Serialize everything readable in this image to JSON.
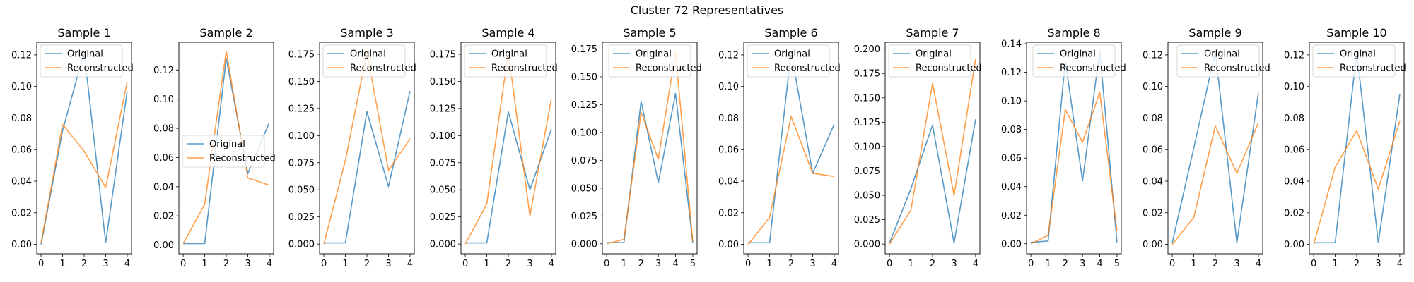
{
  "figure": {
    "title": "Cluster 72 Representatives"
  },
  "chart_data": [
    {
      "type": "line",
      "title": "Sample 1",
      "x": [
        0,
        1,
        2,
        3,
        4
      ],
      "xticks": [
        0,
        1,
        2,
        3,
        4
      ],
      "xlim": [
        -0.2,
        4.2
      ],
      "ylim": [
        -0.006,
        0.128
      ],
      "yticks": [
        0.0,
        0.02,
        0.04,
        0.06,
        0.08,
        0.1,
        0.12
      ],
      "ytick_labels": [
        "0.00",
        "0.02",
        "0.04",
        "0.06",
        "0.08",
        "0.10",
        "0.12"
      ],
      "legend": "upper-left",
      "series": [
        {
          "name": "Original",
          "color": "#1f77b4",
          "values": [
            0.0,
            0.072,
            0.122,
            0.001,
            0.097
          ]
        },
        {
          "name": "Reconstructed",
          "color": "#ff7f0e",
          "values": [
            0.001,
            0.076,
            0.059,
            0.036,
            0.103
          ]
        }
      ]
    },
    {
      "type": "line",
      "title": "Sample 2",
      "x": [
        0,
        1,
        2,
        3,
        4
      ],
      "xticks": [
        0,
        1,
        2,
        3,
        4
      ],
      "xlim": [
        -0.2,
        4.2
      ],
      "ylim": [
        -0.006,
        0.139
      ],
      "yticks": [
        0.0,
        0.02,
        0.04,
        0.06,
        0.08,
        0.1,
        0.12
      ],
      "ytick_labels": [
        "0.00",
        "0.02",
        "0.04",
        "0.06",
        "0.08",
        "0.10",
        "0.12"
      ],
      "legend": "center-left",
      "series": [
        {
          "name": "Original",
          "color": "#1f77b4",
          "values": [
            0.001,
            0.001,
            0.128,
            0.049,
            0.084
          ]
        },
        {
          "name": "Reconstructed",
          "color": "#ff7f0e",
          "values": [
            0.001,
            0.028,
            0.133,
            0.046,
            0.041
          ]
        }
      ]
    },
    {
      "type": "line",
      "title": "Sample 3",
      "x": [
        0,
        1,
        2,
        3,
        4
      ],
      "xticks": [
        0,
        1,
        2,
        3,
        4
      ],
      "xlim": [
        -0.2,
        4.2
      ],
      "ylim": [
        -0.009,
        0.186
      ],
      "yticks": [
        0.0,
        0.025,
        0.05,
        0.075,
        0.1,
        0.125,
        0.15,
        0.175
      ],
      "ytick_labels": [
        "0.000",
        "0.025",
        "0.050",
        "0.075",
        "0.100",
        "0.125",
        "0.150",
        "0.175"
      ],
      "legend": "upper-left",
      "series": [
        {
          "name": "Original",
          "color": "#1f77b4",
          "values": [
            0.001,
            0.001,
            0.122,
            0.053,
            0.141
          ]
        },
        {
          "name": "Reconstructed",
          "color": "#ff7f0e",
          "values": [
            0.0,
            0.077,
            0.177,
            0.068,
            0.097
          ]
        }
      ]
    },
    {
      "type": "line",
      "title": "Sample 4",
      "x": [
        0,
        1,
        2,
        3,
        4
      ],
      "xticks": [
        0,
        1,
        2,
        3,
        4
      ],
      "xlim": [
        -0.2,
        4.2
      ],
      "ylim": [
        -0.009,
        0.186
      ],
      "yticks": [
        0.0,
        0.025,
        0.05,
        0.075,
        0.1,
        0.125,
        0.15,
        0.175
      ],
      "ytick_labels": [
        "0.000",
        "0.025",
        "0.050",
        "0.075",
        "0.100",
        "0.125",
        "0.150",
        "0.175"
      ],
      "legend": "upper-left",
      "series": [
        {
          "name": "Original",
          "color": "#1f77b4",
          "values": [
            0.001,
            0.001,
            0.122,
            0.05,
            0.106
          ]
        },
        {
          "name": "Reconstructed",
          "color": "#ff7f0e",
          "values": [
            0.0,
            0.037,
            0.177,
            0.026,
            0.134
          ]
        }
      ]
    },
    {
      "type": "line",
      "title": "Sample 5",
      "x": [
        0,
        1,
        2,
        3,
        4,
        5
      ],
      "xticks": [
        0,
        1,
        2,
        3,
        4,
        5
      ],
      "xlim": [
        -0.25,
        5.25
      ],
      "ylim": [
        -0.009,
        0.181
      ],
      "yticks": [
        0.0,
        0.025,
        0.05,
        0.075,
        0.1,
        0.125,
        0.15,
        0.175
      ],
      "ytick_labels": [
        "0.000",
        "0.025",
        "0.050",
        "0.075",
        "0.100",
        "0.125",
        "0.150",
        "0.175"
      ],
      "legend": "upper-center",
      "series": [
        {
          "name": "Original",
          "color": "#1f77b4",
          "values": [
            0.001,
            0.001,
            0.128,
            0.055,
            0.135,
            0.001
          ]
        },
        {
          "name": "Reconstructed",
          "color": "#ff7f0e",
          "values": [
            0.0,
            0.004,
            0.118,
            0.076,
            0.172,
            0.002
          ]
        }
      ]
    },
    {
      "type": "line",
      "title": "Sample 6",
      "x": [
        0,
        1,
        2,
        3,
        4
      ],
      "xticks": [
        0,
        1,
        2,
        3,
        4
      ],
      "xlim": [
        -0.2,
        4.2
      ],
      "ylim": [
        -0.006,
        0.128
      ],
      "yticks": [
        0.0,
        0.02,
        0.04,
        0.06,
        0.08,
        0.1,
        0.12
      ],
      "ytick_labels": [
        "0.00",
        "0.02",
        "0.04",
        "0.06",
        "0.08",
        "0.10",
        "0.12"
      ],
      "legend": "upper-left",
      "series": [
        {
          "name": "Original",
          "color": "#1f77b4",
          "values": [
            0.001,
            0.001,
            0.122,
            0.045,
            0.076
          ]
        },
        {
          "name": "Reconstructed",
          "color": "#ff7f0e",
          "values": [
            0.0,
            0.017,
            0.081,
            0.045,
            0.043
          ]
        }
      ]
    },
    {
      "type": "line",
      "title": "Sample 7",
      "x": [
        0,
        1,
        2,
        3,
        4
      ],
      "xticks": [
        0,
        1,
        2,
        3,
        4
      ],
      "xlim": [
        -0.2,
        4.2
      ],
      "ylim": [
        -0.01,
        0.207
      ],
      "yticks": [
        0.0,
        0.025,
        0.05,
        0.075,
        0.1,
        0.125,
        0.15,
        0.175,
        0.2
      ],
      "ytick_labels": [
        "0.000",
        "0.025",
        "0.050",
        "0.075",
        "0.100",
        "0.125",
        "0.150",
        "0.175",
        "0.200"
      ],
      "legend": "upper-left",
      "series": [
        {
          "name": "Original",
          "color": "#1f77b4",
          "values": [
            0.001,
            0.057,
            0.122,
            0.001,
            0.128
          ]
        },
        {
          "name": "Reconstructed",
          "color": "#ff7f0e",
          "values": [
            0.0,
            0.035,
            0.165,
            0.05,
            0.19
          ]
        }
      ]
    },
    {
      "type": "line",
      "title": "Sample 8",
      "x": [
        0,
        1,
        2,
        3,
        4,
        5
      ],
      "xticks": [
        0,
        1,
        2,
        3,
        4,
        5
      ],
      "xlim": [
        -0.25,
        5.25
      ],
      "ylim": [
        -0.007,
        0.141
      ],
      "yticks": [
        0.0,
        0.02,
        0.04,
        0.06,
        0.08,
        0.1,
        0.12,
        0.14
      ],
      "ytick_labels": [
        "0.00",
        "0.02",
        "0.04",
        "0.06",
        "0.08",
        "0.10",
        "0.12",
        "0.14"
      ],
      "legend": "upper-center",
      "series": [
        {
          "name": "Original",
          "color": "#1f77b4",
          "values": [
            0.001,
            0.002,
            0.128,
            0.044,
            0.135,
            0.001
          ]
        },
        {
          "name": "Reconstructed",
          "color": "#ff7f0e",
          "values": [
            0.0,
            0.006,
            0.094,
            0.071,
            0.106,
            0.009
          ]
        }
      ]
    },
    {
      "type": "line",
      "title": "Sample 9",
      "x": [
        0,
        1,
        2,
        3,
        4
      ],
      "xticks": [
        0,
        1,
        2,
        3,
        4
      ],
      "xlim": [
        -0.2,
        4.2
      ],
      "ylim": [
        -0.006,
        0.128
      ],
      "yticks": [
        0.0,
        0.02,
        0.04,
        0.06,
        0.08,
        0.1,
        0.12
      ],
      "ytick_labels": [
        "0.00",
        "0.02",
        "0.04",
        "0.06",
        "0.08",
        "0.10",
        "0.12"
      ],
      "legend": "upper-right",
      "series": [
        {
          "name": "Original",
          "color": "#1f77b4",
          "values": [
            0.001,
            0.061,
            0.122,
            0.001,
            0.096
          ]
        },
        {
          "name": "Reconstructed",
          "color": "#ff7f0e",
          "values": [
            0.0,
            0.017,
            0.075,
            0.045,
            0.077
          ]
        }
      ]
    },
    {
      "type": "line",
      "title": "Sample 10",
      "x": [
        0,
        1,
        2,
        3,
        4
      ],
      "xticks": [
        0,
        1,
        2,
        3,
        4
      ],
      "xlim": [
        -0.2,
        4.2
      ],
      "ylim": [
        -0.006,
        0.128
      ],
      "yticks": [
        0.0,
        0.02,
        0.04,
        0.06,
        0.08,
        0.1,
        0.12
      ],
      "ytick_labels": [
        "0.00",
        "0.02",
        "0.04",
        "0.06",
        "0.08",
        "0.10",
        "0.12"
      ],
      "legend": "upper-left",
      "series": [
        {
          "name": "Original",
          "color": "#1f77b4",
          "values": [
            0.001,
            0.001,
            0.122,
            0.001,
            0.095
          ]
        },
        {
          "name": "Reconstructed",
          "color": "#ff7f0e",
          "values": [
            0.0,
            0.049,
            0.072,
            0.035,
            0.078
          ]
        }
      ]
    }
  ]
}
